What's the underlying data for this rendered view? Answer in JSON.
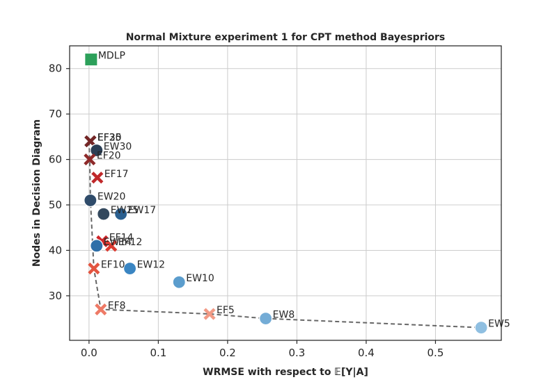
{
  "chart_data": {
    "type": "scatter",
    "title": "Normal Mixture experiment 1 for CPT method Bayespriors",
    "xlabel": "WRMSE with respect to 𝔼[Y|A]",
    "ylabel": "Nodes in Decision Diagram",
    "xlim": [
      -0.028,
      0.595
    ],
    "ylim": [
      20.2,
      85.0
    ],
    "xticks": [
      0.0,
      0.1,
      0.2,
      0.3,
      0.4,
      0.5
    ],
    "xtick_labels": [
      "0.0",
      "0.1",
      "0.2",
      "0.3",
      "0.4",
      "0.5"
    ],
    "yticks": [
      30,
      40,
      50,
      60,
      70,
      80
    ],
    "ytick_labels": [
      "30",
      "40",
      "50",
      "60",
      "70",
      "80"
    ],
    "grid": true,
    "points": [
      {
        "label": "MDLP",
        "x": 0.003,
        "y": 82,
        "marker": "square",
        "color": "#2ca05a"
      },
      {
        "label": "EF35",
        "x": 0.002,
        "y": 64,
        "marker": "x",
        "color": "#3b1f1f"
      },
      {
        "label": "EF30",
        "x": 0.002,
        "y": 64,
        "marker": "x",
        "color": "#5a2323"
      },
      {
        "label": "EF25",
        "x": 0.002,
        "y": 64,
        "marker": "x",
        "color": "#742626"
      },
      {
        "label": "EW30",
        "x": 0.011,
        "y": 62,
        "marker": "circle",
        "color": "#2b3f55"
      },
      {
        "label": "EF20",
        "x": 0.001,
        "y": 60,
        "marker": "x",
        "color": "#8e2a2a"
      },
      {
        "label": "EF17",
        "x": 0.012,
        "y": 56,
        "marker": "x",
        "color": "#c0282a"
      },
      {
        "label": "EW20",
        "x": 0.002,
        "y": 51,
        "marker": "circle",
        "color": "#2f4b6a"
      },
      {
        "label": "EW25",
        "x": 0.021,
        "y": 48,
        "marker": "circle",
        "color": "#34495e"
      },
      {
        "label": "EW17",
        "x": 0.046,
        "y": 48,
        "marker": "circle",
        "color": "#2a5f8f"
      },
      {
        "label": "EF14",
        "x": 0.019,
        "y": 42,
        "marker": "x",
        "color": "#d0262a"
      },
      {
        "label": "EW14",
        "x": 0.011,
        "y": 41,
        "marker": "circle",
        "color": "#2f6fa8"
      },
      {
        "label": "EF12",
        "x": 0.032,
        "y": 41,
        "marker": "x",
        "color": "#dc3a30"
      },
      {
        "label": "EF10",
        "x": 0.007,
        "y": 36,
        "marker": "x",
        "color": "#e35540"
      },
      {
        "label": "EW12",
        "x": 0.059,
        "y": 36,
        "marker": "circle",
        "color": "#3a85c2"
      },
      {
        "label": "EW10",
        "x": 0.13,
        "y": 33,
        "marker": "circle",
        "color": "#5b9dcd"
      },
      {
        "label": "EF8",
        "x": 0.017,
        "y": 27,
        "marker": "x",
        "color": "#ee7a66"
      },
      {
        "label": "EF5",
        "x": 0.174,
        "y": 26,
        "marker": "x",
        "color": "#f29a85"
      },
      {
        "label": "EW8",
        "x": 0.255,
        "y": 25,
        "marker": "circle",
        "color": "#74acd6"
      },
      {
        "label": "EW5",
        "x": 0.566,
        "y": 23,
        "marker": "circle",
        "color": "#8fbfe1"
      }
    ],
    "pareto_front": {
      "x": [
        0.0,
        0.001,
        0.002,
        0.007,
        0.017,
        0.174,
        0.255,
        0.566
      ],
      "y": [
        64,
        60,
        51,
        36,
        27,
        26,
        25,
        23
      ],
      "style": "dashed",
      "color": "#666666"
    }
  }
}
